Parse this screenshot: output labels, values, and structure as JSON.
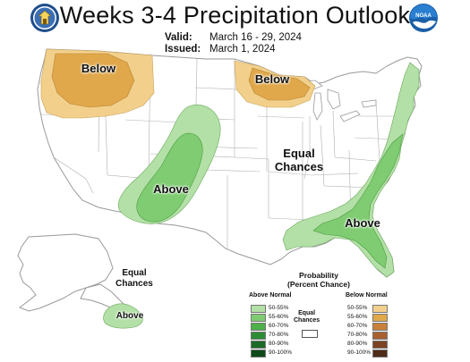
{
  "header": {
    "title": "Weeks 3-4 Precipitation Outlook",
    "valid_label": "Valid:",
    "valid_value": "March 16 - 29, 2024",
    "issued_label": "Issued:",
    "issued_value": "March 1, 2024"
  },
  "logos": {
    "left": "seal-icon",
    "right": "noaa-logo-icon",
    "noaa_text": "NOAA"
  },
  "map_labels": {
    "northwest": "Below",
    "upper_midwest": "Below",
    "southwest": "Above",
    "southeast": "Above",
    "central_line1": "Equal",
    "central_line2": "Chances",
    "alaska_line1": "Equal",
    "alaska_line2": "Chances",
    "alaska_south": "Above"
  },
  "colors": {
    "above_50_55": "#b3e0a6",
    "above_55_60": "#7fcc72",
    "above_60_70": "#4eb04a",
    "above_70_80": "#2e8c35",
    "above_80_90": "#1c6b28",
    "above_90_100": "#0f4a1a",
    "below_50_55": "#f2d08c",
    "below_55_60": "#e0a84b",
    "below_60_70": "#c8803a",
    "below_70_80": "#a86030",
    "below_80_90": "#7d4323",
    "below_90_100": "#4e2c18",
    "land": "#ffffff",
    "border": "#999999"
  },
  "legend": {
    "title_line1": "Probability",
    "title_line2": "(Percent Chance)",
    "above_header": "Above Normal",
    "below_header": "Below Normal",
    "equal_line1": "Equal",
    "equal_line2": "Chances",
    "ranges": [
      "50-55%",
      "55-60%",
      "60-70%",
      "70-80%",
      "80-90%",
      "90-100%"
    ]
  }
}
